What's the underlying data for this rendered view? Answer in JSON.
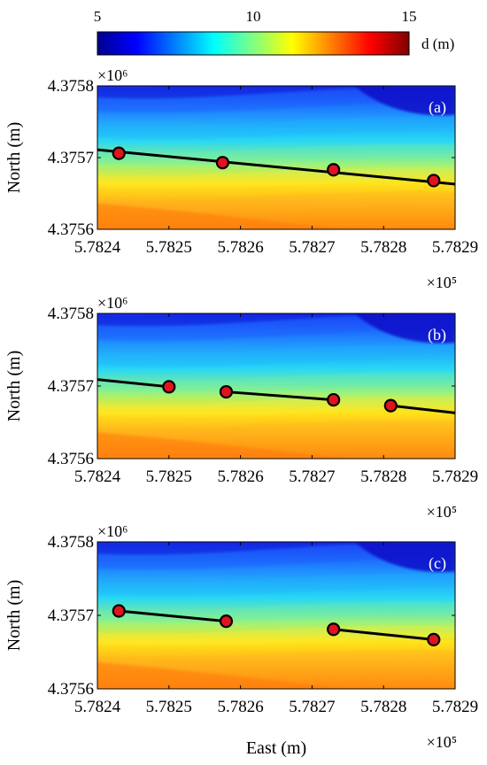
{
  "colorbar": {
    "label": "d (m)",
    "ticks": [
      "5",
      "10",
      "15"
    ],
    "range": [
      5,
      15
    ],
    "colormap": [
      "#00008f",
      "#0000ff",
      "#0080ff",
      "#00ffff",
      "#80ff80",
      "#ffff00",
      "#ff8000",
      "#ff0000",
      "#800000"
    ]
  },
  "chart_data": [
    {
      "type": "scatter",
      "panel_label": "(a)",
      "xlabel": "",
      "ylabel": "North (m)",
      "x_ticks": [
        "5.7824",
        "5.7825",
        "5.7826",
        "5.7827",
        "5.7828",
        "5.7829"
      ],
      "y_ticks": [
        "4.3756",
        "4.3757",
        "4.3758"
      ],
      "x_exponent": "×10⁵",
      "y_exponent": "×10⁶",
      "xlim": [
        578240,
        578290
      ],
      "ylim": [
        4375600,
        4375800
      ],
      "points": [
        {
          "x": 578243.0,
          "y": 4375706
        },
        {
          "x": 578257.5,
          "y": 4375693
        },
        {
          "x": 578273.0,
          "y": 4375683
        },
        {
          "x": 578287.0,
          "y": 4375668
        }
      ],
      "segments": [
        {
          "x": [
            578240.0,
            578290.0
          ],
          "y": [
            4375711,
            4375663
          ]
        }
      ],
      "marker_color": "#e0141c",
      "line_color": "#000000"
    },
    {
      "type": "scatter",
      "panel_label": "(b)",
      "xlabel": "",
      "ylabel": "North (m)",
      "x_ticks": [
        "5.7824",
        "5.7825",
        "5.7826",
        "5.7827",
        "5.7828",
        "5.7829"
      ],
      "y_ticks": [
        "4.3756",
        "4.3757",
        "4.3758"
      ],
      "x_exponent": "×10⁵",
      "y_exponent": "×10⁶",
      "xlim": [
        578240,
        578290
      ],
      "ylim": [
        4375600,
        4375800
      ],
      "points": [
        {
          "x": 578250.0,
          "y": 4375699
        },
        {
          "x": 578258.0,
          "y": 4375692
        },
        {
          "x": 578273.0,
          "y": 4375681
        },
        {
          "x": 578281.0,
          "y": 4375673
        }
      ],
      "segments": [
        {
          "x": [
            578240.0,
            578250.0
          ],
          "y": [
            4375709,
            4375699
          ]
        },
        {
          "x": [
            578258.0,
            578273.0
          ],
          "y": [
            4375692,
            4375681
          ]
        },
        {
          "x": [
            578281.0,
            578290.0
          ],
          "y": [
            4375673,
            4375663
          ]
        }
      ],
      "marker_color": "#e0141c",
      "line_color": "#000000"
    },
    {
      "type": "scatter",
      "panel_label": "(c)",
      "xlabel": "East (m)",
      "ylabel": "North (m)",
      "x_ticks": [
        "5.7824",
        "5.7825",
        "5.7826",
        "5.7827",
        "5.7828",
        "5.7829"
      ],
      "y_ticks": [
        "4.3756",
        "4.3757",
        "4.3758"
      ],
      "x_exponent": "×10⁵",
      "y_exponent": "×10⁶",
      "xlim": [
        578240,
        578290
      ],
      "ylim": [
        4375600,
        4375800
      ],
      "points": [
        {
          "x": 578243.0,
          "y": 4375706
        },
        {
          "x": 578258.0,
          "y": 4375692
        },
        {
          "x": 578273.0,
          "y": 4375681
        },
        {
          "x": 578287.0,
          "y": 4375667
        }
      ],
      "segments": [
        {
          "x": [
            578243.0,
            578258.0
          ],
          "y": [
            4375706,
            4375692
          ]
        },
        {
          "x": [
            578273.0,
            578287.0
          ],
          "y": [
            4375681,
            4375667
          ]
        }
      ],
      "marker_color": "#e0141c",
      "line_color": "#000000"
    }
  ]
}
